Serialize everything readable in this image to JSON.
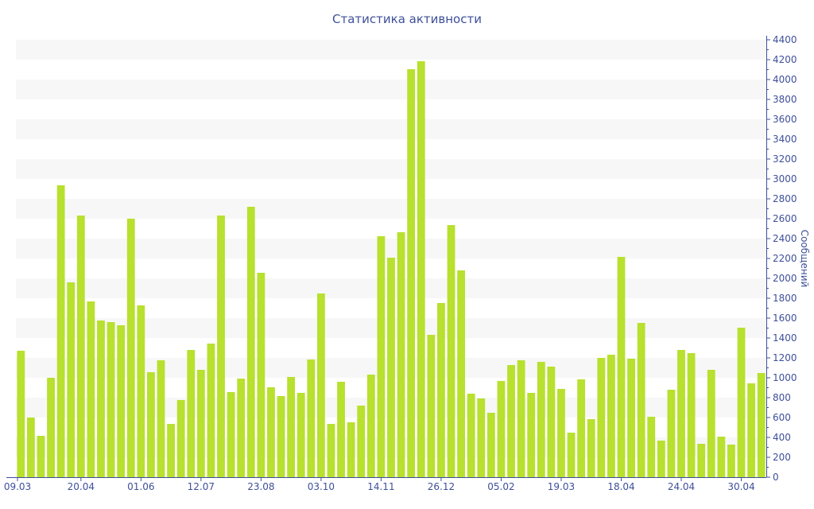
{
  "chart_data": {
    "type": "bar",
    "title": "Статистика активности",
    "ylabel": "Сообщений",
    "xlabel": "",
    "ylim": [
      0,
      4400
    ],
    "ytick_step": 200,
    "grid": "alternating horizontal bands",
    "values": [
      1272,
      600,
      416,
      1000,
      2936,
      1960,
      2632,
      1768,
      1576,
      1560,
      1528,
      2600,
      1728,
      1056,
      1176,
      536,
      776,
      1280,
      1080,
      1344,
      2632,
      856,
      992,
      2720,
      2056,
      904,
      816,
      1008,
      848,
      1184,
      1848,
      536,
      960,
      552,
      720,
      1032,
      2424,
      2208,
      2464,
      4104,
      4184,
      1432,
      1752,
      2536,
      2080,
      840,
      792,
      648,
      968,
      1128,
      1176,
      848,
      1160,
      1112,
      888,
      448,
      984,
      584,
      1200,
      1232,
      2216,
      1192,
      1552,
      608,
      368,
      880,
      1280,
      1248,
      336,
      1080,
      408,
      328,
      1504,
      944,
      1048
    ],
    "x_ticks": [
      {
        "index": 0,
        "label": "09.03"
      },
      {
        "index": 6,
        "label": "20.04"
      },
      {
        "index": 12,
        "label": "01.06"
      },
      {
        "index": 18,
        "label": "12.07"
      },
      {
        "index": 24,
        "label": "23.08"
      },
      {
        "index": 30,
        "label": "03.10"
      },
      {
        "index": 36,
        "label": "14.11"
      },
      {
        "index": 42,
        "label": "26.12"
      },
      {
        "index": 48,
        "label": "05.02"
      },
      {
        "index": 54,
        "label": "19.03"
      },
      {
        "index": 60,
        "label": "18.04"
      },
      {
        "index": 66,
        "label": "24.04"
      },
      {
        "index": 72,
        "label": "30.04"
      }
    ],
    "colors": {
      "bar": "#b8e02e",
      "axis": "#3e4f9a",
      "band": "#f7f7f7"
    }
  }
}
